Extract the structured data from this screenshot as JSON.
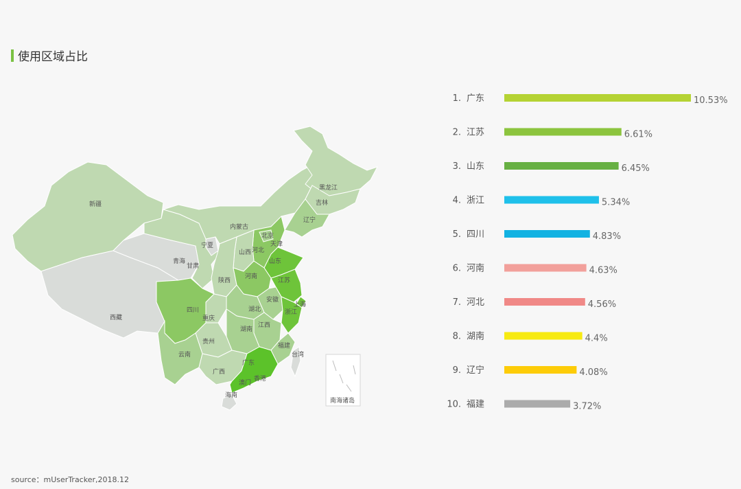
{
  "title": "使用区域占比",
  "source": "source：mUserTracker,2018.12",
  "map": {
    "labels": {
      "xinjiang": "新疆",
      "xizang": "西藏",
      "qinghai": "青海",
      "gansu": "甘肃",
      "ningxia": "宁夏",
      "neimenggu": "内蒙古",
      "heilongjiang": "黑龙江",
      "jilin": "吉林",
      "liaoning": "辽宁",
      "beijing": "北京",
      "tianjin": "天津",
      "hebei": "河北",
      "shanxi": "山西",
      "shandong": "山东",
      "henan": "河南",
      "shaanxi": "陕西",
      "sichuan": "四川",
      "chongqing": "重庆",
      "hubei": "湖北",
      "anhui": "安徽",
      "jiangsu": "江苏",
      "shanghai": "上海",
      "zhejiang": "浙江",
      "jiangxi": "江西",
      "hunan": "湖南",
      "guizhou": "贵州",
      "yunnan": "云南",
      "guangxi": "广西",
      "guangdong": "广东",
      "fujian": "福建",
      "taiwan": "台湾",
      "hongkong": "香港",
      "macau": "澳门",
      "hainan": "海南",
      "nanhai": "南海诸岛"
    },
    "colors": {
      "low": "#bfd9b1",
      "none": "#d9dcd9",
      "mid": "#a8d191",
      "midhigh": "#8cc863",
      "high": "#6ec43a",
      "top": "#5cc22a"
    }
  },
  "chart_data": {
    "type": "bar",
    "orientation": "horizontal",
    "categories": [
      "广东",
      "江苏",
      "山东",
      "浙江",
      "四川",
      "河南",
      "河北",
      "湖南",
      "辽宁",
      "福建"
    ],
    "ranks": [
      "1.",
      "2.",
      "3.",
      "4.",
      "5.",
      "6.",
      "7.",
      "8.",
      "9.",
      "10."
    ],
    "values": [
      10.53,
      6.61,
      6.45,
      5.34,
      4.83,
      4.63,
      4.56,
      4.4,
      4.08,
      3.72
    ],
    "value_labels": [
      "10.53%",
      "6.61%",
      "6.45%",
      "5.34%",
      "4.83%",
      "4.63%",
      "4.56%",
      "4.4%",
      "4.08%",
      "3.72%"
    ],
    "colors": [
      "#b5d334",
      "#8cc43e",
      "#67b043",
      "#1fc0ea",
      "#12b2e2",
      "#f2a09b",
      "#f08987",
      "#f7ea12",
      "#fdcc08",
      "#ababab"
    ],
    "unit": "%"
  }
}
